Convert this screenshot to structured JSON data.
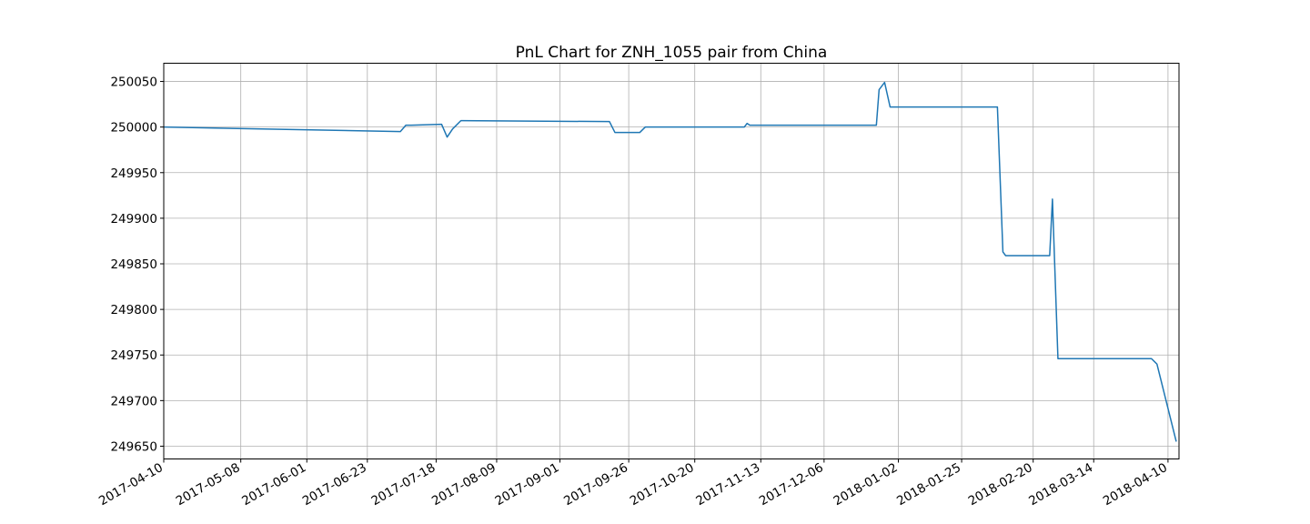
{
  "chart_data": {
    "type": "line",
    "title": "PnL Chart for ZNH_1055 pair from China",
    "xlabel": "",
    "ylabel": "",
    "x_axis_type": "date",
    "xlim": [
      "2017-04-10",
      "2018-04-14"
    ],
    "ylim": [
      249636,
      250070
    ],
    "grid": true,
    "line_color": "#1f77b4",
    "x_tick_labels": [
      "2017-04-10",
      "2017-05-08",
      "2017-06-01",
      "2017-06-23",
      "2017-07-18",
      "2017-08-09",
      "2017-09-01",
      "2017-09-26",
      "2017-10-20",
      "2017-11-13",
      "2017-12-06",
      "2018-01-02",
      "2018-01-25",
      "2018-02-20",
      "2018-03-14",
      "2018-04-10"
    ],
    "y_tick_labels": [
      "249650",
      "249700",
      "249750",
      "249800",
      "249850",
      "249900",
      "249950",
      "250000",
      "250050"
    ],
    "series": [
      {
        "x": [
          "2017-04-10",
          "2017-07-05",
          "2017-07-07",
          "2017-07-09",
          "2017-07-20",
          "2017-07-22",
          "2017-07-24",
          "2017-07-27",
          "2017-09-19",
          "2017-09-21",
          "2017-09-30",
          "2017-10-02",
          "2017-11-07",
          "2017-11-08",
          "2017-11-09",
          "2017-12-25",
          "2017-12-26",
          "2017-12-28",
          "2017-12-30",
          "2018-02-07",
          "2018-02-09",
          "2018-02-10",
          "2018-02-26",
          "2018-02-27",
          "2018-03-01",
          "2018-04-04",
          "2018-04-06",
          "2018-04-13"
        ],
        "y": [
          250000,
          249995,
          250002,
          250002,
          250003,
          249989,
          249998,
          250007,
          250006,
          249994,
          249994,
          250000,
          250000,
          250004,
          250002,
          250002,
          250041,
          250049,
          250022,
          250022,
          249863,
          249859,
          249859,
          249921,
          249746,
          249746,
          249740,
          249655
        ]
      }
    ]
  }
}
